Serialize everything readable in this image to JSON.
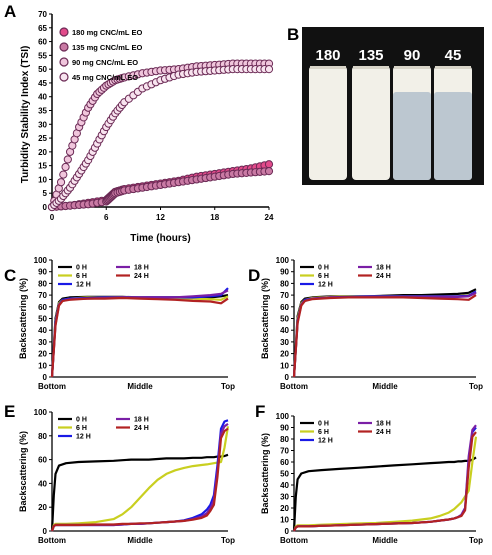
{
  "colors": {
    "series_0h": "#000000",
    "series_6h": "#c9cf20",
    "series_12h": "#1a1ae6",
    "series_18h": "#7a1fa6",
    "series_24h": "#b22222",
    "marker_fill_a": "#e8a0c0",
    "marker_edge_a": "#6b2a55",
    "photo_bg": "#111111"
  },
  "panel_a": {
    "letter": "A",
    "photo_letter": "B",
    "photo_labels": [
      "180",
      "135",
      "90",
      "45"
    ],
    "chart_data": {
      "type": "scatter",
      "xlabel": "Time (hours)",
      "ylabel": "Turbidity Stability Index (TSI)",
      "xlim": [
        0,
        24
      ],
      "ylim": [
        0,
        70
      ],
      "xticks": [
        "0",
        "6",
        "12",
        "18",
        "24"
      ],
      "yticks": [
        "0",
        "5",
        "10",
        "15",
        "20",
        "25",
        "30",
        "35",
        "40",
        "45",
        "50",
        "55",
        "60",
        "65",
        "70"
      ],
      "legend_position": "top-left",
      "series": [
        {
          "name": "180 mg CNC/mL EO",
          "x": [
            0,
            2,
            4,
            6,
            6.5,
            7,
            8,
            10,
            12,
            14,
            16,
            18,
            20,
            22,
            24
          ],
          "y": [
            0,
            0.5,
            1.5,
            2.5,
            4,
            5.5,
            6.5,
            7.5,
            8.5,
            9.5,
            11,
            12,
            13,
            14,
            15.5
          ]
        },
        {
          "name": "135 mg CNC/mL EO",
          "x": [
            0,
            2,
            4,
            6,
            6.5,
            7,
            8,
            10,
            12,
            14,
            16,
            18,
            20,
            22,
            24
          ],
          "y": [
            0,
            0.5,
            1,
            2,
            3.5,
            5,
            6,
            7,
            8,
            9,
            10,
            11,
            12,
            12.5,
            13
          ]
        },
        {
          "name": "90 mg CNC/mL EO",
          "x": [
            0,
            1,
            2,
            3,
            4,
            5,
            6,
            7,
            8,
            10,
            12,
            14,
            16,
            18,
            20,
            22,
            24
          ],
          "y": [
            0,
            9,
            20,
            29,
            36,
            41,
            44,
            46,
            47,
            48.5,
            49.5,
            50,
            51,
            51.5,
            52,
            52,
            52
          ]
        },
        {
          "name": "45 mg CNC/mL EO",
          "x": [
            0,
            1,
            2,
            3,
            4,
            5,
            6,
            7,
            8,
            10,
            12,
            14,
            16,
            18,
            20,
            22,
            24
          ],
          "y": [
            0,
            3,
            7,
            12,
            17,
            23,
            29,
            34,
            38,
            43,
            46,
            48,
            49,
            49.5,
            50,
            50,
            50
          ]
        }
      ]
    }
  },
  "backscatter_panels": [
    {
      "letter": "C",
      "chart_data": {
        "type": "line",
        "ylabel": "Backscattering (%)",
        "ylim": [
          0,
          100
        ],
        "yticks": [
          "0",
          "10",
          "20",
          "30",
          "40",
          "50",
          "60",
          "70",
          "80",
          "90",
          "100"
        ],
        "xticks": [
          "Bottom",
          "Middle",
          "Top"
        ],
        "legend_position": "top-left",
        "x": [
          0,
          2,
          4,
          6,
          10,
          20,
          30,
          40,
          50,
          60,
          70,
          80,
          90,
          96,
          100
        ],
        "series": [
          {
            "name": "0 H",
            "values": [
              0,
              50,
              64,
              67,
              68,
              68.5,
              68.5,
              68.5,
              68,
              68,
              68,
              68,
              68,
              69,
              70
            ]
          },
          {
            "name": "6 H",
            "values": [
              0,
              48,
              63,
              66,
              67,
              68,
              68,
              68,
              68,
              67.5,
              67,
              67,
              66.5,
              66,
              69
            ]
          },
          {
            "name": "12 H",
            "values": [
              0,
              47,
              62,
              66,
              67,
              67.5,
              68,
              68,
              68,
              68,
              68,
              68,
              69,
              70,
              76
            ]
          },
          {
            "name": "18 H",
            "values": [
              0,
              45,
              62,
              65,
              66.5,
              67,
              67.5,
              68,
              68,
              68,
              68,
              69,
              70,
              71,
              74
            ]
          },
          {
            "name": "24 H",
            "values": [
              0,
              44,
              61,
              65,
              66,
              67,
              67,
              67.5,
              67,
              66.5,
              66,
              65,
              64.5,
              63,
              67
            ]
          }
        ]
      }
    },
    {
      "letter": "D",
      "chart_data": {
        "type": "line",
        "ylabel": "Backscattering (%)",
        "ylim": [
          0,
          100
        ],
        "yticks": [
          "0",
          "10",
          "20",
          "30",
          "40",
          "50",
          "60",
          "70",
          "80",
          "90",
          "100"
        ],
        "xticks": [
          "Bottom",
          "Middle",
          "Top"
        ],
        "legend_position": "top-left",
        "x": [
          0,
          2,
          4,
          6,
          10,
          20,
          30,
          40,
          50,
          60,
          70,
          80,
          90,
          96,
          100
        ],
        "series": [
          {
            "name": "0 H",
            "values": [
              0,
              52,
              64,
              67,
              68,
              69,
              69,
              69,
              69.5,
              70,
              70,
              70.5,
              71,
              72,
              75
            ]
          },
          {
            "name": "6 H",
            "values": [
              0,
              50,
              63,
              66,
              67.5,
              68.5,
              69,
              69,
              69,
              69,
              69,
              69,
              69,
              70,
              72
            ]
          },
          {
            "name": "12 H",
            "values": [
              0,
              48,
              62,
              66,
              67,
              68,
              68.5,
              69,
              69,
              69,
              69,
              69,
              69,
              69.5,
              73
            ]
          },
          {
            "name": "18 H",
            "values": [
              0,
              47,
              62,
              65,
              67,
              68,
              68,
              68.5,
              68.5,
              68.5,
              68.5,
              68.5,
              68.5,
              69,
              72
            ]
          },
          {
            "name": "24 H",
            "values": [
              0,
              46,
              61,
              65,
              66.5,
              67.5,
              68,
              68,
              68,
              68,
              67.5,
              67,
              66.5,
              66,
              70
            ]
          }
        ]
      }
    },
    {
      "letter": "E",
      "chart_data": {
        "type": "line",
        "ylabel": "Backscattering (%)",
        "ylim": [
          0,
          100
        ],
        "yticks": [
          "0",
          "20",
          "40",
          "60",
          "80",
          "100"
        ],
        "xticks": [
          "Bottom",
          "Middle",
          "Top"
        ],
        "legend_position": "top-left",
        "x": [
          0,
          1,
          2,
          4,
          8,
          15,
          25,
          35,
          40,
          45,
          50,
          55,
          60,
          65,
          70,
          75,
          80,
          85,
          88,
          90,
          92,
          94,
          96,
          98,
          100
        ],
        "series": [
          {
            "name": "0 H",
            "values": [
              0,
              30,
              48,
              55,
              57,
              58,
              58.5,
              59,
              59.5,
              60,
              60,
              60,
              60.5,
              61,
              61,
              61,
              61.5,
              61.5,
              62,
              62,
              62,
              62.5,
              62.5,
              63,
              64
            ]
          },
          {
            "name": "6 H",
            "values": [
              0,
              5,
              6,
              6,
              6,
              6.5,
              7.5,
              10,
              14,
              20,
              28,
              36,
              43,
              48,
              51,
              53,
              54.5,
              55.5,
              56,
              56.5,
              57,
              57.5,
              58,
              70,
              88
            ]
          },
          {
            "name": "12 H",
            "values": [
              0,
              4,
              5,
              5,
              5,
              5,
              5,
              5,
              5.5,
              6,
              6,
              6.5,
              7,
              7.5,
              8,
              9,
              11,
              14,
              18,
              22,
              30,
              55,
              86,
              92,
              93
            ]
          },
          {
            "name": "18 H",
            "values": [
              0,
              4,
              5,
              5,
              5,
              5,
              5,
              5,
              5.5,
              6,
              6,
              6.5,
              7,
              7.5,
              8,
              8.5,
              10,
              12,
              15,
              19,
              26,
              50,
              82,
              88,
              90
            ]
          },
          {
            "name": "24 H",
            "values": [
              0,
              4,
              5,
              5,
              5,
              5,
              5.5,
              5.5,
              6,
              6,
              6.5,
              6.5,
              7,
              7.5,
              8,
              8.5,
              9.5,
              11,
              13,
              17,
              22,
              45,
              78,
              84,
              86
            ]
          }
        ]
      }
    },
    {
      "letter": "F",
      "chart_data": {
        "type": "line",
        "ylabel": "Backscattering (%)",
        "ylim": [
          0,
          100
        ],
        "yticks": [
          "0",
          "10",
          "20",
          "30",
          "40",
          "50",
          "60",
          "70",
          "80",
          "90",
          "100"
        ],
        "xticks": [
          "Bottom",
          "Middle",
          "Top"
        ],
        "legend_position": "top-left",
        "x": [
          0,
          1,
          2,
          4,
          8,
          15,
          25,
          35,
          45,
          55,
          65,
          75,
          80,
          85,
          88,
          90,
          92,
          94,
          96,
          98,
          100
        ],
        "series": [
          {
            "name": "0 H",
            "values": [
              0,
              30,
              45,
              50,
              52,
              53,
              54,
              55,
              56,
              57,
              58,
              59,
              59.5,
              60,
              60,
              60.5,
              60.5,
              61,
              61,
              62,
              64
            ]
          },
          {
            "name": "6 H",
            "values": [
              0,
              4,
              5,
              5,
              5,
              5.5,
              6,
              6.5,
              7,
              8,
              9,
              11,
              13,
              16,
              19,
              22,
              25,
              30,
              35,
              60,
              82
            ]
          },
          {
            "name": "12 H",
            "values": [
              0,
              3,
              4,
              4,
              4,
              4.5,
              5,
              5.5,
              6,
              6.5,
              7,
              8,
              9,
              10,
              11,
              12,
              14,
              20,
              60,
              86,
              90
            ]
          },
          {
            "name": "18 H",
            "values": [
              0,
              3,
              4,
              4,
              4,
              4.5,
              5,
              5.5,
              6,
              6.5,
              7,
              8,
              9,
              10,
              11,
              12,
              14,
              20,
              65,
              88,
              92
            ]
          },
          {
            "name": "24 H",
            "values": [
              0,
              3,
              4,
              4,
              4,
              4.5,
              5,
              5.5,
              6,
              6.5,
              7,
              8,
              9,
              10,
              11,
              12,
              13,
              18,
              55,
              82,
              86
            ]
          }
        ]
      }
    }
  ]
}
